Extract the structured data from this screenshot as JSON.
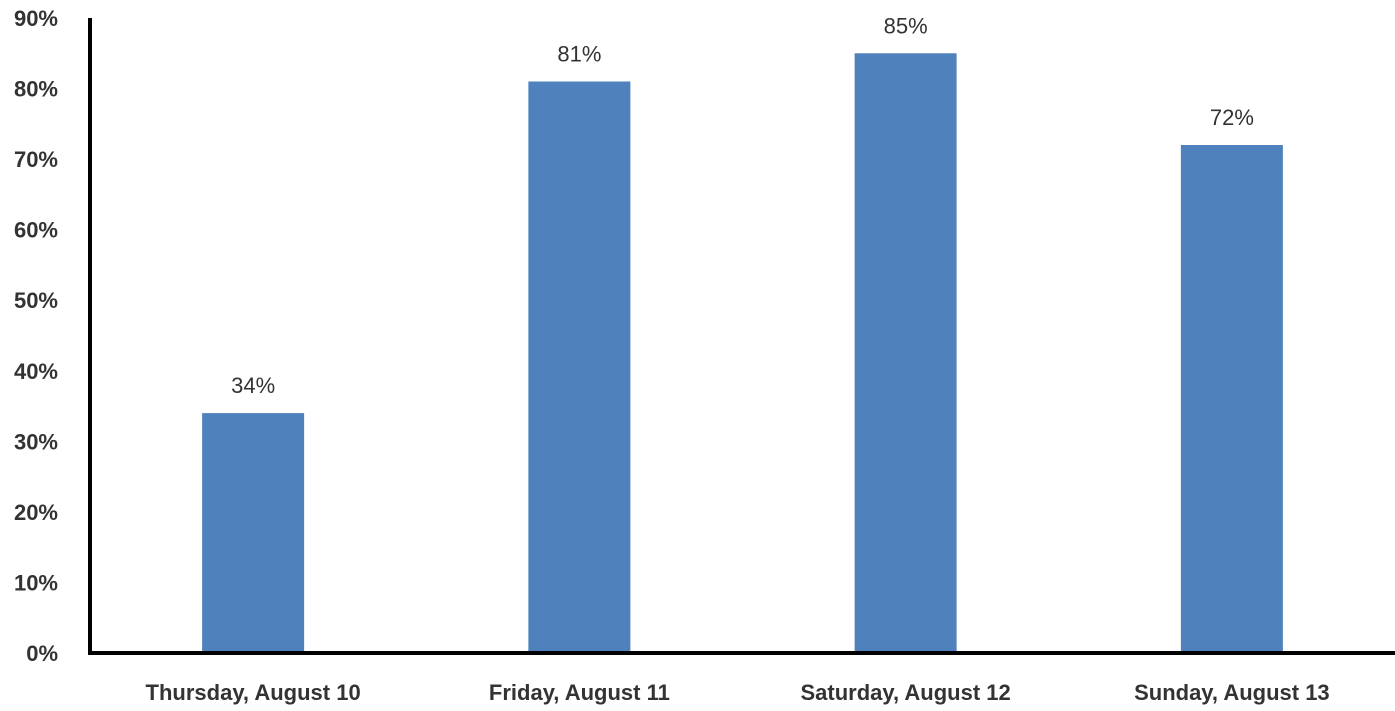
{
  "chart_data": {
    "type": "bar",
    "categories": [
      "Thursday, August 10",
      "Friday, August 11",
      "Saturday, August 12",
      "Sunday, August 13"
    ],
    "values": [
      34,
      81,
      85,
      72
    ],
    "data_labels": [
      "34%",
      "81%",
      "85%",
      "72%"
    ],
    "ylim": [
      0,
      90
    ],
    "yticks": [
      0,
      10,
      20,
      30,
      40,
      50,
      60,
      70,
      80,
      90
    ],
    "ytick_labels": [
      "0%",
      "10%",
      "20%",
      "30%",
      "40%",
      "50%",
      "60%",
      "70%",
      "80%",
      "90%"
    ],
    "grid": false,
    "colors": {
      "bar": "#4f81bd"
    }
  }
}
